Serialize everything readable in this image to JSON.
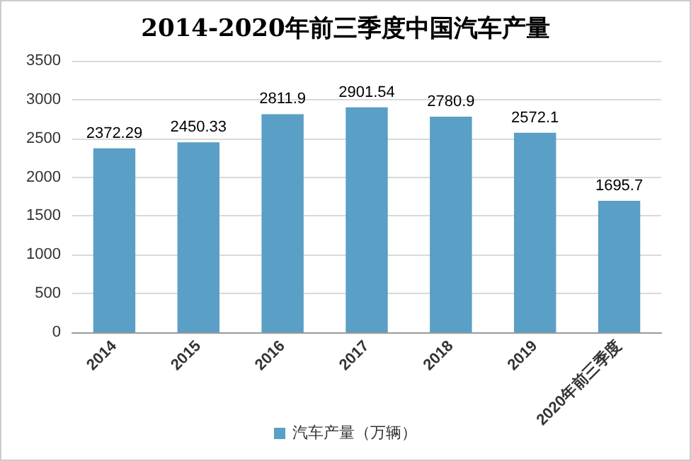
{
  "chart_data": {
    "type": "bar",
    "title": "2014-2020年前三季度中国汽车产量",
    "categories": [
      "2014",
      "2015",
      "2016",
      "2017",
      "2018",
      "2019",
      "2020年前三季度"
    ],
    "series": [
      {
        "name": "汽车产量（万辆）",
        "color": "#5a9fc5",
        "values": [
          2372.29,
          2450.33,
          2811.9,
          2901.54,
          2780.9,
          2572.1,
          1695.7
        ]
      }
    ],
    "ylim": [
      0,
      3500
    ],
    "yticks": [
      0,
      500,
      1000,
      1500,
      2000,
      2500,
      3000,
      3500
    ],
    "grid": "y",
    "legend": "bottom",
    "data_labels": true
  }
}
